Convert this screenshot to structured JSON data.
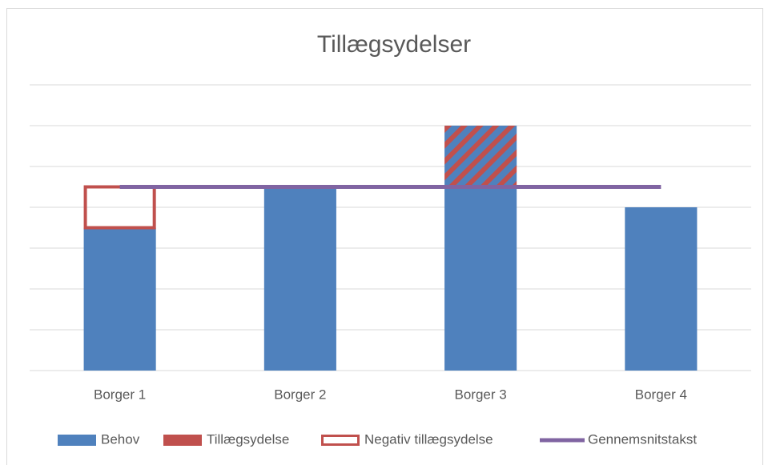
{
  "chart_data": {
    "type": "bar",
    "stacked": true,
    "title": "Tillægsydelser",
    "categories": [
      "Borger 1",
      "Borger 2",
      "Borger 3",
      "Borger 4"
    ],
    "ylim": [
      0,
      7
    ],
    "yticks": [
      0,
      1,
      2,
      3,
      4,
      5,
      6,
      7
    ],
    "grid": true,
    "legend": "bottom",
    "series": [
      {
        "name": "Behov",
        "type": "bar",
        "style": "solid",
        "color": "#4f81bd",
        "values": [
          3.5,
          4.5,
          4.5,
          4
        ]
      },
      {
        "name": "Tillægsydelse",
        "type": "bar",
        "style": "hatched",
        "color": "#c0504d",
        "values": [
          null,
          null,
          1.5,
          null
        ]
      },
      {
        "name": "Negativ tillægsydelse",
        "type": "bar",
        "style": "outline",
        "color": "#c0504d",
        "values": [
          1,
          null,
          null,
          null
        ]
      },
      {
        "name": "Gennemsnitstakst",
        "type": "line",
        "color": "#8064a2",
        "values": [
          4.5,
          4.5,
          4.5,
          4.5
        ]
      }
    ]
  }
}
